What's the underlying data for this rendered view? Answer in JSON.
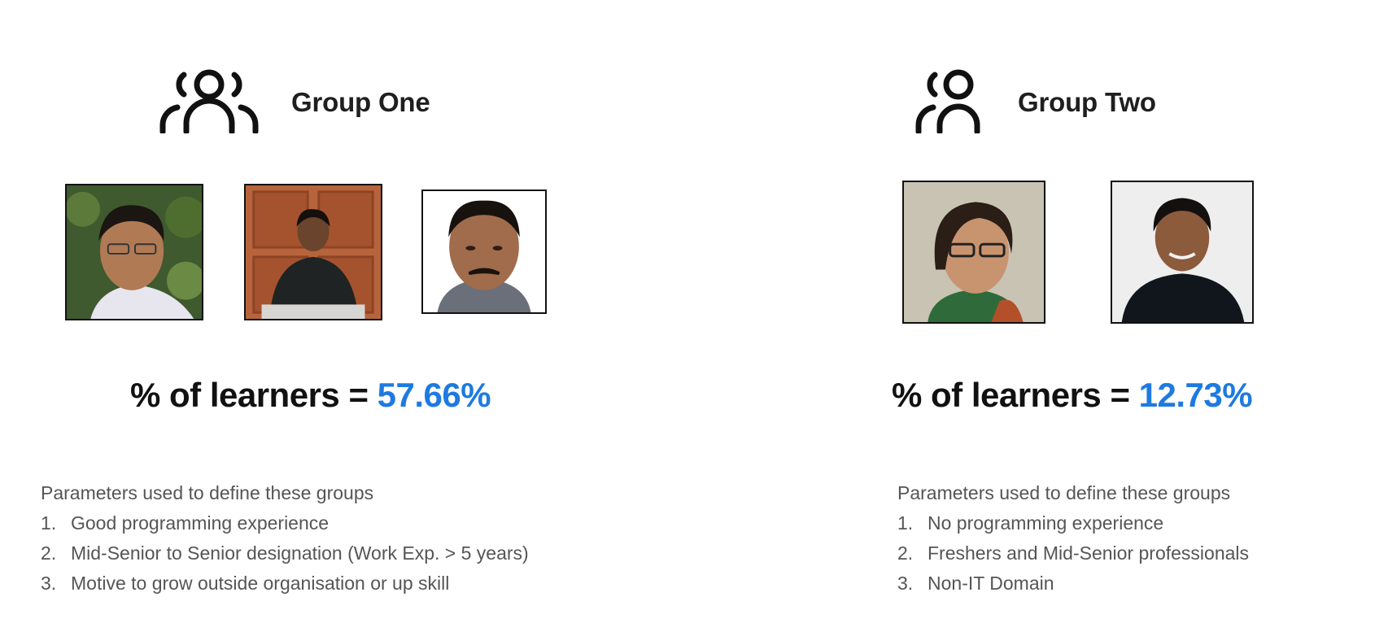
{
  "groups": [
    {
      "title": "Group One",
      "icon": "group-people-icon",
      "stat_label": "% of learners = ",
      "stat_value": "57.66%",
      "params_heading": "Parameters used to define these groups",
      "params": [
        {
          "num": "1.",
          "text": "Good programming experience"
        },
        {
          "num": "2.",
          "text": "Mid-Senior to Senior designation (Work Exp. > 5 years)"
        },
        {
          "num": "3.",
          "text": "Motive to grow outside organisation or up skill"
        }
      ]
    },
    {
      "title": "Group Two",
      "icon": "person-icon",
      "stat_label": "% of learners = ",
      "stat_value": "12.73%",
      "params_heading": "Parameters used to define these groups",
      "params": [
        {
          "num": "1.",
          "text": "No programming experience"
        },
        {
          "num": "2.",
          "text": "Freshers and Mid-Senior professionals"
        },
        {
          "num": "3.",
          "text": "Non-IT Domain"
        }
      ]
    }
  ],
  "colors": {
    "accent": "#1e7ae0",
    "text": "#1a1a1a",
    "muted": "#555555"
  }
}
